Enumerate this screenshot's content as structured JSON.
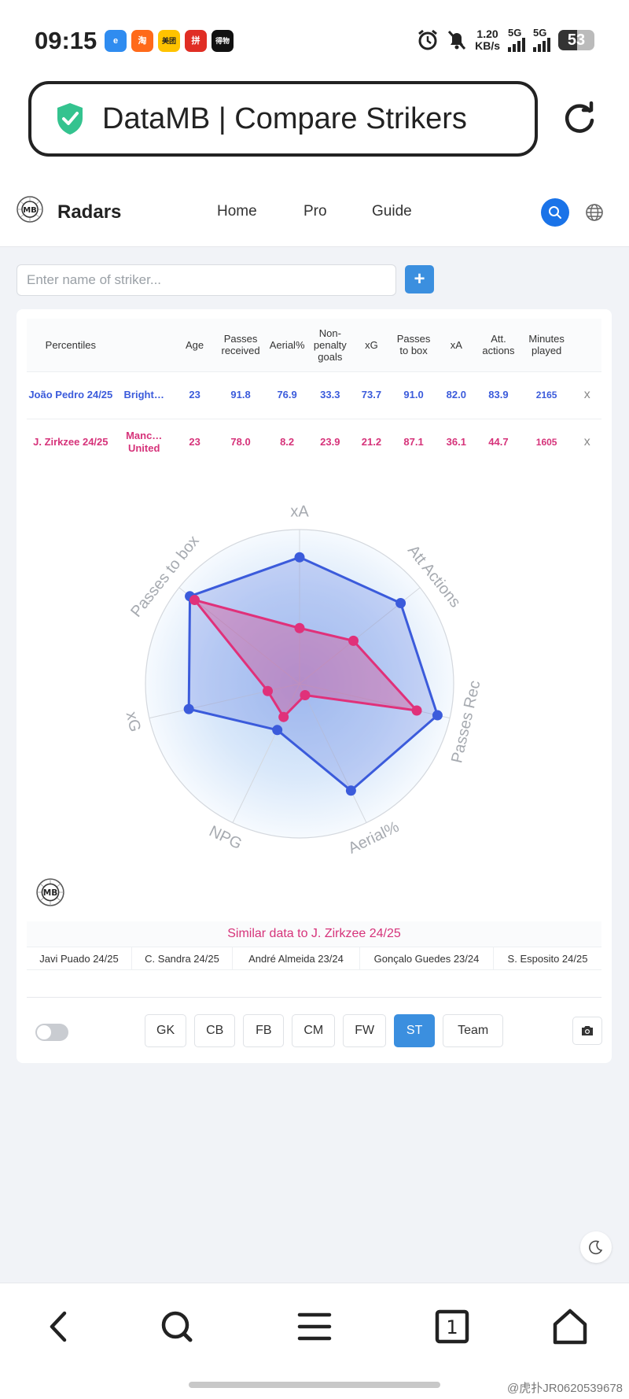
{
  "status_bar": {
    "time": "09:15",
    "app_icons": [
      "e",
      "淘",
      "美团",
      "拼",
      "得物"
    ],
    "net_speed_value": "1.20",
    "net_speed_unit": "KB/s",
    "signal1_label": "5G",
    "signal2_label": "5G",
    "battery": "53"
  },
  "browser": {
    "url_title": "DataMB | Compare Strikers"
  },
  "nav": {
    "brand": "Radars",
    "links": [
      "Home",
      "Pro",
      "Guide"
    ]
  },
  "search": {
    "placeholder": "Enter name of striker...",
    "add_label": "+"
  },
  "table": {
    "headers": [
      "Percentiles",
      "",
      "Age",
      "Passes received",
      "Aerial%",
      "Non-penalty goals",
      "xG",
      "Passes to box",
      "xA",
      "Att. actions",
      "Minutes played",
      ""
    ],
    "rows": [
      {
        "player": "João Pedro 24/25",
        "team": "Bright…",
        "age": "23",
        "passes_received": "91.8",
        "aerial": "76.9",
        "npg": "33.3",
        "xg": "73.7",
        "passes_to_box": "91.0",
        "xa": "82.0",
        "att_actions": "83.9",
        "minutes": "2165",
        "remove": "x"
      },
      {
        "player": "J. Zirkzee 24/25",
        "team": "Manc… United",
        "age": "23",
        "passes_received": "78.0",
        "aerial": "8.2",
        "npg": "23.9",
        "xg": "21.2",
        "passes_to_box": "87.1",
        "xa": "36.1",
        "att_actions": "44.7",
        "minutes": "1605",
        "remove": "x"
      }
    ]
  },
  "radar": {
    "axes": [
      "xA",
      "Att Actions",
      "Passes Rec",
      "Aerial%",
      "NPG",
      "xG",
      "Passes to box"
    ],
    "colors": {
      "player1": "#3b5bdb",
      "player2": "#e0317a"
    }
  },
  "similar": {
    "title": "Similar data to J. Zirkzee 24/25",
    "items": [
      "Javi Puado 24/25",
      "C. Sandra 24/25",
      "André Almeida 23/24",
      "Gonçalo Guedes 23/24",
      "S. Esposito 24/25"
    ]
  },
  "positions": {
    "buttons": [
      "GK",
      "CB",
      "FB",
      "CM",
      "FW",
      "ST",
      "Team"
    ],
    "active": "ST"
  },
  "watermark": "@虎扑JR0620539678"
}
